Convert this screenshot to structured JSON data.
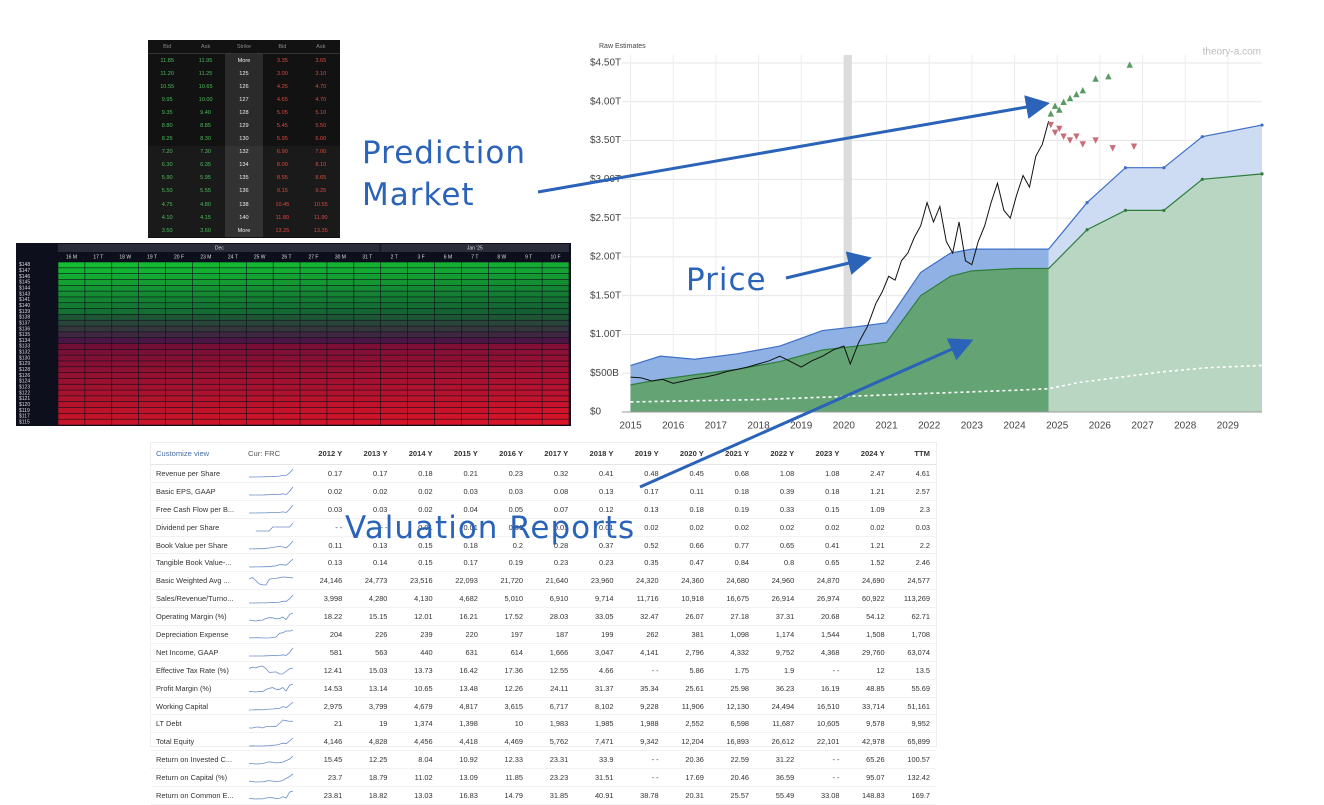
{
  "order_book": {
    "headers": [
      "Bid",
      "Ask",
      "Strike",
      "Bid",
      "Ask"
    ],
    "rows": [
      [
        "11.85",
        "11.95",
        "More",
        "3.35",
        "3.65"
      ],
      [
        "11.20",
        "11.25",
        "125",
        "3.00",
        "3.10"
      ],
      [
        "10.55",
        "10.65",
        "126",
        "4.25",
        "4.70"
      ],
      [
        "9.95",
        "10.00",
        "127",
        "4.65",
        "4.70"
      ],
      [
        "9.35",
        "9.40",
        "128",
        "5.05",
        "5.10"
      ],
      [
        "8.80",
        "8.85",
        "129",
        "5.45",
        "5.50"
      ],
      [
        "8.25",
        "8.30",
        "130",
        "5.95",
        "6.00"
      ],
      [
        "7.20",
        "7.30",
        "132",
        "6.90",
        "7.00"
      ],
      [
        "6.30",
        "6.35",
        "134",
        "8.00",
        "8.10"
      ],
      [
        "5.90",
        "5.95",
        "135",
        "8.55",
        "8.65"
      ],
      [
        "5.50",
        "5.55",
        "136",
        "9.15",
        "9.25"
      ],
      [
        "4.75",
        "4.80",
        "138",
        "10.45",
        "10.55"
      ],
      [
        "4.10",
        "4.15",
        "140",
        "11.80",
        "11.90"
      ],
      [
        "3.50",
        "3.60",
        "More",
        "13.25",
        "13.35"
      ]
    ]
  },
  "heatmap": {
    "months": [
      "Dec",
      "Jan '25"
    ],
    "days": [
      "16 M",
      "17 T",
      "18 W",
      "19 T",
      "20 F",
      "23 M",
      "24 T",
      "25 W",
      "26 T",
      "27 F",
      "30 M",
      "31 T",
      "2 T",
      "3 F",
      "6 M",
      "7 T",
      "8 W",
      "9 T",
      "10 F"
    ],
    "strikes": [
      "$148",
      "$147",
      "$146",
      "$145",
      "$144",
      "$143",
      "$141",
      "$140",
      "$139",
      "$138",
      "$137",
      "$136",
      "$135",
      "$134",
      "$133",
      "$132",
      "$130",
      "$129",
      "$128",
      "$126",
      "$124",
      "$123",
      "$122",
      "$121",
      "$120",
      "$119",
      "$117",
      "$115"
    ]
  },
  "chart_data": {
    "type": "line",
    "subtitle": "Raw Estimates",
    "watermark": "theory-a.com",
    "xlim": [
      2014.8,
      2029.8
    ],
    "xticks": [
      2015,
      2016,
      2017,
      2018,
      2019,
      2020,
      2021,
      2022,
      2023,
      2024,
      2025,
      2026,
      2027,
      2028,
      2029
    ],
    "ylim": [
      0,
      4.5
    ],
    "yticks": [
      {
        "value": 0,
        "label": "$0"
      },
      {
        "value": 0.5,
        "label": "$500B"
      },
      {
        "value": 1,
        "label": "$1.00T"
      },
      {
        "value": 1.5,
        "label": "$1.50T"
      },
      {
        "value": 2,
        "label": "$2.00T"
      },
      {
        "value": 2.5,
        "label": "$2.50T"
      },
      {
        "value": 3,
        "label": "$3.00T"
      },
      {
        "value": 3.5,
        "label": "$3.50T"
      },
      {
        "value": 4,
        "label": "$4.00T"
      },
      {
        "value": 4.5,
        "label": "$4.50T"
      }
    ],
    "grid": true,
    "series": [
      {
        "kind": "area",
        "color": "#3d6fc8",
        "fill": "#8fb1e3",
        "forecast_fill": "#cddcf3",
        "x": [
          2015,
          2015.7,
          2016.5,
          2017.5,
          2018.5,
          2019.5,
          2020.3,
          2021,
          2021.8,
          2022.5,
          2023,
          2024,
          2024.8,
          2025.7,
          2026.6,
          2027.5,
          2028.4,
          2029.8
        ],
        "values": [
          0.6,
          0.72,
          0.68,
          0.75,
          0.85,
          1.05,
          1.1,
          1.15,
          1.8,
          2.05,
          2.1,
          2.1,
          2.1,
          2.7,
          3.15,
          3.15,
          3.55,
          3.7
        ]
      },
      {
        "kind": "area",
        "color": "#2e7d3a",
        "fill": "#64a474",
        "forecast_fill": "#b9d6c3",
        "x": [
          2015,
          2015.7,
          2016.5,
          2017.5,
          2018.5,
          2019.5,
          2020.3,
          2021,
          2021.8,
          2022.5,
          2023,
          2024,
          2024.8,
          2025.7,
          2026.6,
          2027.5,
          2028.4,
          2029.8
        ],
        "values": [
          0.35,
          0.42,
          0.48,
          0.55,
          0.65,
          0.8,
          0.85,
          0.9,
          1.5,
          1.75,
          1.82,
          1.85,
          1.85,
          2.35,
          2.6,
          2.6,
          3.0,
          3.07
        ]
      },
      {
        "kind": "dotted",
        "color": "#ffffff",
        "x": [
          2015,
          2016,
          2017,
          2018,
          2019,
          2020,
          2021,
          2022,
          2023,
          2024,
          2024.8,
          2025.5,
          2026.5,
          2027.5,
          2028.5,
          2029.8
        ],
        "values": [
          0.13,
          0.14,
          0.15,
          0.16,
          0.18,
          0.2,
          0.22,
          0.24,
          0.26,
          0.28,
          0.3,
          0.38,
          0.45,
          0.52,
          0.57,
          0.6
        ]
      },
      {
        "kind": "line",
        "color": "#111111",
        "x": [
          2015.0,
          2015.25,
          2015.5,
          2015.75,
          2016.0,
          2016.25,
          2016.5,
          2016.75,
          2017.0,
          2017.25,
          2017.5,
          2017.75,
          2018.0,
          2018.25,
          2018.5,
          2018.75,
          2019.0,
          2019.25,
          2019.5,
          2019.75,
          2020.0,
          2020.15,
          2020.35,
          2020.55,
          2020.75,
          2020.9,
          2021.05,
          2021.2,
          2021.35,
          2021.5,
          2021.65,
          2021.8,
          2021.95,
          2022.1,
          2022.25,
          2022.4,
          2022.55,
          2022.7,
          2022.85,
          2023.0,
          2023.15,
          2023.3,
          2023.45,
          2023.6,
          2023.75,
          2023.9,
          2024.05,
          2024.2,
          2024.35,
          2024.5,
          2024.65,
          2024.8
        ],
        "values": [
          0.45,
          0.44,
          0.4,
          0.42,
          0.37,
          0.4,
          0.43,
          0.45,
          0.48,
          0.52,
          0.55,
          0.58,
          0.62,
          0.66,
          0.72,
          0.65,
          0.58,
          0.66,
          0.72,
          0.8,
          0.85,
          0.62,
          0.9,
          1.1,
          1.4,
          1.55,
          1.75,
          1.7,
          1.95,
          2.05,
          2.25,
          2.4,
          2.7,
          2.45,
          2.65,
          2.2,
          2.05,
          2.45,
          1.95,
          1.9,
          2.2,
          2.4,
          2.7,
          2.95,
          2.6,
          2.5,
          2.8,
          3.05,
          2.9,
          3.3,
          3.45,
          3.75
        ]
      },
      {
        "kind": "scatter",
        "marker": "up",
        "color": "#3a8a48",
        "x": [
          2024.85,
          2024.95,
          2025.05,
          2025.15,
          2025.3,
          2025.45,
          2025.6,
          2025.9,
          2026.2,
          2026.7
        ],
        "values": [
          3.85,
          3.95,
          3.9,
          4.0,
          4.05,
          4.1,
          4.15,
          4.3,
          4.33,
          4.48
        ]
      },
      {
        "kind": "scatter",
        "marker": "down",
        "color": "#c0555f",
        "x": [
          2024.85,
          2024.95,
          2025.05,
          2025.15,
          2025.3,
          2025.45,
          2025.6,
          2025.9,
          2026.3,
          2026.8
        ],
        "values": [
          3.7,
          3.6,
          3.65,
          3.55,
          3.5,
          3.55,
          3.45,
          3.5,
          3.4,
          3.42
        ]
      }
    ]
  },
  "table": {
    "customize": "Customize view",
    "currency": "Cur: FRC",
    "columns": [
      "2012 Y",
      "2013 Y",
      "2014 Y",
      "2015 Y",
      "2016 Y",
      "2017 Y",
      "2018 Y",
      "2019 Y",
      "2020 Y",
      "2021 Y",
      "2022 Y",
      "2023 Y",
      "2024 Y",
      "TTM"
    ],
    "rows": [
      {
        "label": "Revenue per Share",
        "cells": [
          "0.17",
          "0.17",
          "0.18",
          "0.21",
          "0.23",
          "0.32",
          "0.41",
          "0.48",
          "0.45",
          "0.68",
          "1.08",
          "1.08",
          "2.47",
          "4.61"
        ]
      },
      {
        "label": "Basic EPS, GAAP",
        "cells": [
          "0.02",
          "0.02",
          "0.02",
          "0.03",
          "0.03",
          "0.08",
          "0.13",
          "0.17",
          "0.11",
          "0.18",
          "0.39",
          "0.18",
          "1.21",
          "2.57"
        ]
      },
      {
        "label": "Free Cash Flow per B...",
        "cells": [
          "0.03",
          "0.03",
          "0.02",
          "0.04",
          "0.05",
          "0.07",
          "0.12",
          "0.13",
          "0.18",
          "0.19",
          "0.33",
          "0.15",
          "1.09",
          "2.3"
        ]
      },
      {
        "label": "Dividend per Share",
        "cells": [
          "- -",
          "- -",
          "0.01",
          "0.01",
          "0.01",
          "0.01",
          "0.01",
          "0.02",
          "0.02",
          "0.02",
          "0.02",
          "0.02",
          "0.02",
          "0.03"
        ]
      },
      {
        "label": "Book Value per Share",
        "cells": [
          "0.11",
          "0.13",
          "0.15",
          "0.18",
          "0.2",
          "0.28",
          "0.37",
          "0.52",
          "0.66",
          "0.77",
          "0.65",
          "0.41",
          "1.21",
          "2.2"
        ]
      },
      {
        "label": "Tangible Book Value-...",
        "cells": [
          "0.13",
          "0.14",
          "0.15",
          "0.17",
          "0.19",
          "0.23",
          "0.23",
          "0.35",
          "0.47",
          "0.84",
          "0.8",
          "0.65",
          "1.52",
          "2.46"
        ]
      },
      {
        "label": "Basic Weighted Avg ...",
        "cells": [
          "24,146",
          "24,773",
          "23,516",
          "22,093",
          "21,720",
          "21,640",
          "23,960",
          "24,320",
          "24,360",
          "24,680",
          "24,960",
          "24,870",
          "24,690",
          "24,577"
        ]
      },
      {
        "label": "Sales/Revenue/Turno...",
        "cells": [
          "3,998",
          "4,280",
          "4,130",
          "4,682",
          "5,010",
          "6,910",
          "9,714",
          "11,716",
          "10,918",
          "16,675",
          "26,914",
          "26,974",
          "60,922",
          "113,269"
        ]
      },
      {
        "label": "Operating Margin (%)",
        "cells": [
          "18.22",
          "15.15",
          "12.01",
          "16.21",
          "17.52",
          "28.03",
          "33.05",
          "32.47",
          "26.07",
          "27.18",
          "37.31",
          "20.68",
          "54.12",
          "62.71"
        ]
      },
      {
        "label": "Depreciation Expense",
        "cells": [
          "204",
          "226",
          "239",
          "220",
          "197",
          "187",
          "199",
          "262",
          "381",
          "1,098",
          "1,174",
          "1,544",
          "1,508",
          "1,708"
        ]
      },
      {
        "label": "Net Income, GAAP",
        "cells": [
          "581",
          "563",
          "440",
          "631",
          "614",
          "1,666",
          "3,047",
          "4,141",
          "2,796",
          "4,332",
          "9,752",
          "4,368",
          "29,760",
          "63,074"
        ]
      },
      {
        "label": "Effective Tax Rate (%)",
        "cells": [
          "12.41",
          "15.03",
          "13.73",
          "16.42",
          "17.36",
          "12.55",
          "4.66",
          "- -",
          "5.86",
          "1.75",
          "1.9",
          "- -",
          "12",
          "13.5"
        ]
      },
      {
        "label": "Profit Margin (%)",
        "cells": [
          "14.53",
          "13.14",
          "10.65",
          "13.48",
          "12.26",
          "24.11",
          "31.37",
          "35.34",
          "25.61",
          "25.98",
          "36.23",
          "16.19",
          "48.85",
          "55.69"
        ]
      },
      {
        "label": "Working Capital",
        "cells": [
          "2,975",
          "3,799",
          "4,679",
          "4,817",
          "3,615",
          "6,717",
          "8,102",
          "9,228",
          "11,906",
          "12,130",
          "24,494",
          "16,510",
          "33,714",
          "51,161"
        ]
      },
      {
        "label": "LT Debt",
        "cells": [
          "21",
          "19",
          "1,374",
          "1,398",
          "10",
          "1,983",
          "1,985",
          "1,988",
          "2,552",
          "6,598",
          "11,687",
          "10,605",
          "9,578",
          "9,952"
        ]
      },
      {
        "label": "Total Equity",
        "cells": [
          "4,146",
          "4,828",
          "4,456",
          "4,418",
          "4,469",
          "5,762",
          "7,471",
          "9,342",
          "12,204",
          "16,893",
          "26,612",
          "22,101",
          "42,978",
          "65,899"
        ]
      },
      {
        "label": "Return on Invested C...",
        "cells": [
          "15.45",
          "12.25",
          "8.04",
          "10.92",
          "12.33",
          "23.31",
          "33.9",
          "- -",
          "20.36",
          "22.59",
          "31.22",
          "- -",
          "65.26",
          "100.57"
        ]
      },
      {
        "label": "Return on Capital (%)",
        "cells": [
          "23.7",
          "18.79",
          "11.02",
          "13.09",
          "11.85",
          "23.23",
          "31.51",
          "- -",
          "17.69",
          "20.46",
          "36.59",
          "- -",
          "95.07",
          "132.42"
        ]
      },
      {
        "label": "Return on Common E...",
        "cells": [
          "23.81",
          "18.82",
          "13.03",
          "16.83",
          "14.79",
          "31.85",
          "40.91",
          "38.78",
          "20.31",
          "25.57",
          "55.49",
          "33.08",
          "148.83",
          "169.7"
        ]
      }
    ]
  },
  "annotations": {
    "prediction_market": [
      "Prediction",
      "Market"
    ],
    "price": "Price",
    "valuation_reports": "Valuation Reports"
  }
}
